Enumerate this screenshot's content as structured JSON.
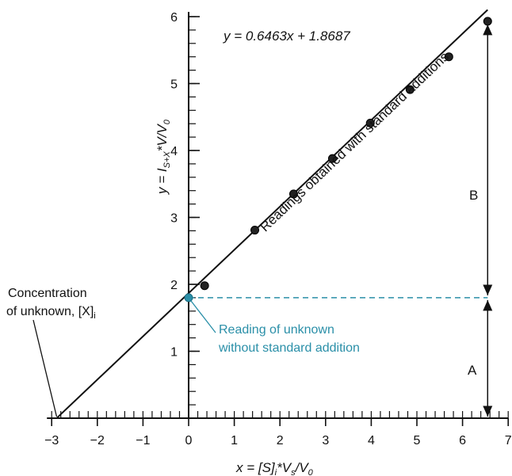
{
  "chart_data": {
    "type": "scatter",
    "equation": "y = 0.6463x + 1.8687",
    "xlabel": {
      "main": "x = [S]",
      "sub1": "i",
      "mid": "*V",
      "sub2": "s",
      "tail": "/V",
      "sub3": "0"
    },
    "ylabel": {
      "main": "y = I",
      "sub1": "S+X",
      "mid": "*V/V",
      "sub2": "0"
    },
    "xlim": [
      -3,
      7
    ],
    "ylim": [
      0,
      6
    ],
    "x_ticks": [
      -3,
      -2,
      -1,
      0,
      1,
      2,
      3,
      4,
      5,
      6,
      7
    ],
    "y_ticks": [
      1,
      2,
      3,
      4,
      5,
      6
    ],
    "x_tick_labels": [
      "−3",
      "−2",
      "−1",
      "0",
      "1",
      "2",
      "3",
      "4",
      "5",
      "6",
      "7"
    ],
    "y_tick_labels": [
      "1",
      "2",
      "3",
      "4",
      "5",
      "6"
    ],
    "fit": {
      "slope": 0.6463,
      "intercept": 1.8687,
      "x_range": [
        -2.89,
        6.55
      ]
    },
    "series": [
      {
        "points": [
          {
            "x": 0.35,
            "y": 1.98
          },
          {
            "x": 1.45,
            "y": 2.81
          },
          {
            "x": 2.3,
            "y": 3.35
          },
          {
            "x": 3.15,
            "y": 3.88
          },
          {
            "x": 3.98,
            "y": 4.41
          },
          {
            "x": 4.85,
            "y": 4.91
          },
          {
            "x": 5.7,
            "y": 5.4
          },
          {
            "x": 6.55,
            "y": 5.93
          }
        ]
      }
    ],
    "unknown_point": {
      "x": 0,
      "y": 1.8
    },
    "unknown_line_color": "#2a8fa8",
    "annotations": {
      "line_label": "Readings obtained with standard additions",
      "unknown_label_1": "Reading of unknown",
      "unknown_label_2": "without standard addition",
      "concentration_label_1": "Concentration",
      "concentration_label_2": "of unknown, [X]",
      "concentration_label_sub": "i",
      "segment_A": "A",
      "segment_B": "B"
    }
  }
}
